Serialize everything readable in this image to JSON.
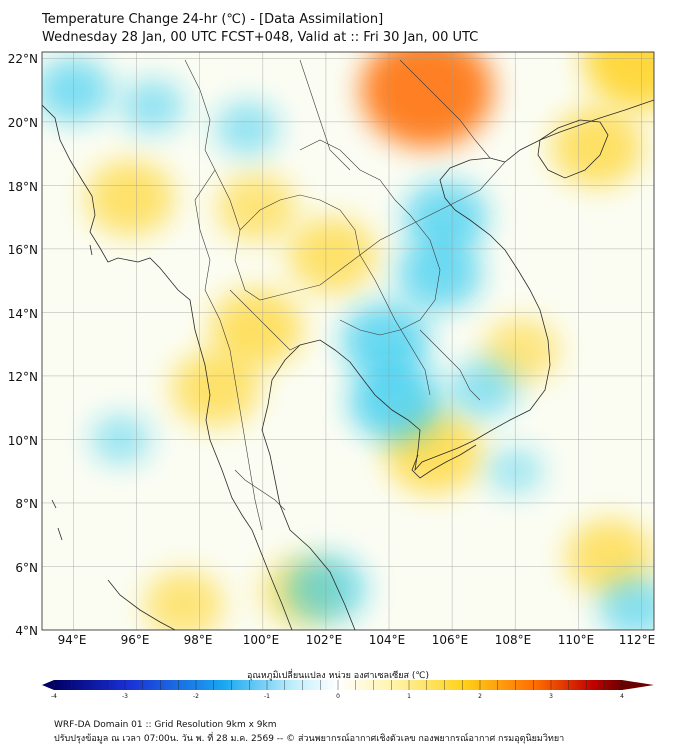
{
  "header": {
    "title_line1": "Temperature Change 24-hr (℃) - [Data Assimilation]",
    "title_line2": "Wednesday 28 Jan, 00 UTC FCST+048, Valid at :: Fri 30 Jan, 00 UTC"
  },
  "map": {
    "lat_labels": [
      "22°N",
      "20°N",
      "18°N",
      "16°N",
      "14°N",
      "12°N",
      "10°N",
      "8°N",
      "6°N",
      "4°N"
    ],
    "lon_labels": [
      "94°E",
      "96°E",
      "98°E",
      "100°E",
      "102°E",
      "104°E",
      "106°E",
      "108°E",
      "110°E",
      "112°E"
    ],
    "extent": {
      "lon_min": 93,
      "lon_max": 112.4,
      "lat_min": 4,
      "lat_max": 22.2
    },
    "field_anomalies": [
      {
        "lon": 105.2,
        "lat": 21.0,
        "change_c": 2.2,
        "kind": "warm"
      },
      {
        "lon": 112.0,
        "lat": 22.0,
        "change_c": 1.8,
        "kind": "warm"
      },
      {
        "lon": 110.6,
        "lat": 19.2,
        "change_c": 1.2,
        "kind": "warm"
      },
      {
        "lon": 95.8,
        "lat": 17.6,
        "change_c": 1.1,
        "kind": "warm"
      },
      {
        "lon": 99.8,
        "lat": 17.3,
        "change_c": 0.9,
        "kind": "warm"
      },
      {
        "lon": 102.2,
        "lat": 15.8,
        "change_c": 1.1,
        "kind": "warm"
      },
      {
        "lon": 99.8,
        "lat": 13.5,
        "change_c": 1.2,
        "kind": "warm"
      },
      {
        "lon": 98.5,
        "lat": 11.6,
        "change_c": 1.1,
        "kind": "warm"
      },
      {
        "lon": 105.4,
        "lat": 9.6,
        "change_c": 1.3,
        "kind": "warm"
      },
      {
        "lon": 108.2,
        "lat": 12.8,
        "change_c": 0.8,
        "kind": "warm"
      },
      {
        "lon": 111.0,
        "lat": 6.3,
        "change_c": 1.1,
        "kind": "warm"
      },
      {
        "lon": 101.2,
        "lat": 5.2,
        "change_c": 0.9,
        "kind": "warm"
      },
      {
        "lon": 97.5,
        "lat": 4.8,
        "change_c": 0.9,
        "kind": "warm"
      },
      {
        "lon": 94.0,
        "lat": 21.0,
        "change_c": -0.8,
        "kind": "cool"
      },
      {
        "lon": 96.5,
        "lat": 20.5,
        "change_c": -0.5,
        "kind": "cool"
      },
      {
        "lon": 99.5,
        "lat": 19.8,
        "change_c": -0.5,
        "kind": "cool"
      },
      {
        "lon": 105.8,
        "lat": 17.0,
        "change_c": -1.0,
        "kind": "cool"
      },
      {
        "lon": 105.6,
        "lat": 15.2,
        "change_c": -1.0,
        "kind": "cool"
      },
      {
        "lon": 103.9,
        "lat": 13.1,
        "change_c": -1.1,
        "kind": "cool"
      },
      {
        "lon": 104.2,
        "lat": 11.2,
        "change_c": -1.2,
        "kind": "cool"
      },
      {
        "lon": 107.0,
        "lat": 11.6,
        "change_c": -0.6,
        "kind": "cool"
      },
      {
        "lon": 102.0,
        "lat": 5.3,
        "change_c": -0.9,
        "kind": "cool"
      },
      {
        "lon": 111.8,
        "lat": 4.7,
        "change_c": -0.7,
        "kind": "cool"
      },
      {
        "lon": 95.5,
        "lat": 10.0,
        "change_c": -0.4,
        "kind": "cool"
      },
      {
        "lon": 108.0,
        "lat": 9.0,
        "change_c": -0.3,
        "kind": "cool"
      }
    ]
  },
  "colorbar": {
    "title": "อุณหภูมิเปลี่ยนแปลง หน่วย องศาเซลเซียส (℃)",
    "tick_labels": [
      "-4",
      "-3",
      "-2",
      "-1",
      "0",
      "1",
      "2",
      "3",
      "4"
    ],
    "range": [
      -4,
      4
    ],
    "extend": "both",
    "colors": {
      "min": "#000066",
      "cold": "#1a2fd6",
      "cool": "#19c4f0",
      "neutral": "#ffffff",
      "warm": "#ffd21a",
      "hot": "#ff6a00",
      "max": "#6a0000"
    }
  },
  "footer": {
    "line1": "WRF-DA Domain 01 :: Grid Resolution 9km x 9km",
    "line2": "ปรับปรุงข้อมูล ณ เวลา 07:00น. วัน พ. ที่ 28 ม.ค. 2569 -- © ส่วนพยากรณ์อากาศเชิงตัวเลข กองพยากรณ์อากาศ กรมอุตุนิยมวิทยา"
  }
}
